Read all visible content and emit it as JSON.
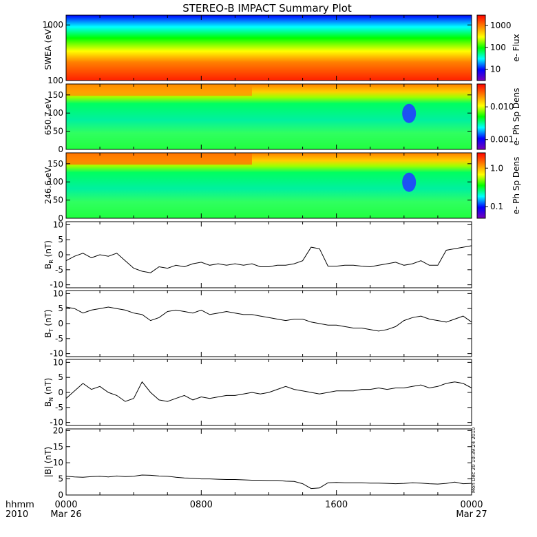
{
  "title": "STEREO-B IMPACT Summary Plot",
  "time_axis": {
    "corner_labels": [
      "hhmm",
      "2010"
    ],
    "ticks": [
      {
        "hhmm": "0000",
        "date": "Mar 26"
      },
      {
        "hhmm": "0800",
        "date": ""
      },
      {
        "hhmm": "1600",
        "date": ""
      },
      {
        "hhmm": "0000",
        "date": "Mar 27"
      }
    ]
  },
  "stamp": "Mon Dec 20 10:39:24 2010",
  "chart_data": [
    {
      "type": "heatmap",
      "ylabel": "SWEA (eV)",
      "yscale": "log",
      "yticks": [
        "1000",
        "100"
      ],
      "ylim": [
        100,
        1500
      ],
      "colorbar": {
        "label": "e- Flux",
        "scale": "log",
        "ticks": [
          "1000",
          "100",
          "10"
        ],
        "range": [
          3,
          3000
        ]
      },
      "colors": [
        "#7a00b8",
        "#0000ff",
        "#00ffff",
        "#00ff00",
        "#ffff00",
        "#ff8000",
        "#ff0000"
      ]
    },
    {
      "type": "heatmap",
      "ylabel": "650.7 eV",
      "yticks": [
        "150",
        "100",
        "50",
        "0"
      ],
      "ylim": [
        0,
        180
      ],
      "colorbar": {
        "label": "e- Ph Sp Dens",
        "scale": "log",
        "ticks": [
          "0.010",
          "0.001"
        ],
        "range": [
          0.0005,
          0.05
        ]
      },
      "colors": [
        "#7a00b8",
        "#0000ff",
        "#00ffff",
        "#00ff00",
        "#ffff00",
        "#ff8000",
        "#ff0000"
      ]
    },
    {
      "type": "heatmap",
      "ylabel": "246.6 eV",
      "yticks": [
        "150",
        "100",
        "50",
        "0"
      ],
      "ylim": [
        0,
        180
      ],
      "colorbar": {
        "label": "e- Ph Sp Dens",
        "scale": "log",
        "ticks": [
          "1.0",
          "0.1"
        ],
        "range": [
          0.05,
          2.5
        ]
      },
      "colors": [
        "#7a00b8",
        "#0000ff",
        "#00ffff",
        "#00ff00",
        "#ffff00",
        "#ff8000",
        "#ff0000"
      ]
    },
    {
      "type": "line",
      "ylabel": "B",
      "ylabel_sub": "R",
      "ylabel_unit": " (nT)",
      "yticks": [
        10,
        5,
        0,
        -5,
        -10
      ],
      "ylim": [
        -11,
        11
      ],
      "x": [
        0,
        0.5,
        1,
        1.5,
        2,
        2.5,
        3,
        3.5,
        4,
        4.5,
        5,
        5.5,
        6,
        6.5,
        7,
        7.5,
        8,
        8.5,
        9,
        9.5,
        10,
        10.5,
        11,
        11.5,
        12,
        12.5,
        13,
        13.5,
        14,
        14.5,
        15,
        15.5,
        16,
        16.5,
        17,
        17.5,
        18,
        18.5,
        19,
        19.5,
        20,
        20.5,
        21,
        21.5,
        22,
        22.5,
        23,
        23.5,
        24
      ],
      "y": [
        -2,
        -0.5,
        0.5,
        -1,
        0,
        -0.5,
        0.5,
        -2,
        -4.5,
        -5.5,
        -6,
        -4,
        -4.5,
        -3.5,
        -4,
        -3,
        -2.5,
        -3.5,
        -3,
        -3.5,
        -3,
        -3.5,
        -3,
        -4,
        -4,
        -3.5,
        -3.5,
        -3,
        -2,
        2.5,
        2,
        -3.8,
        -3.8,
        -3.5,
        -3.5,
        -3.8,
        -4,
        -3.5,
        -3,
        -2.5,
        -3.5,
        -3,
        -2,
        -3.5,
        -3.5,
        1.5,
        2,
        2.5,
        3
      ]
    },
    {
      "type": "line",
      "ylabel": "B",
      "ylabel_sub": "T",
      "ylabel_unit": " (nT)",
      "yticks": [
        10,
        5,
        0,
        -5,
        -10
      ],
      "ylim": [
        -11,
        11
      ],
      "x": [
        0,
        0.5,
        1,
        1.5,
        2,
        2.5,
        3,
        3.5,
        4,
        4.5,
        5,
        5.5,
        6,
        6.5,
        7,
        7.5,
        8,
        8.5,
        9,
        9.5,
        10,
        10.5,
        11,
        11.5,
        12,
        12.5,
        13,
        13.5,
        14,
        14.5,
        15,
        15.5,
        16,
        16.5,
        17,
        17.5,
        18,
        18.5,
        19,
        19.5,
        20,
        20.5,
        21,
        21.5,
        22,
        22.5,
        23,
        23.5,
        24
      ],
      "y": [
        5.5,
        5,
        3.5,
        4.5,
        5,
        5.5,
        5,
        4.5,
        3.5,
        3,
        1,
        2,
        4,
        4.5,
        4,
        3.5,
        4.5,
        3,
        3.5,
        4,
        3.5,
        3,
        3,
        2.5,
        2,
        1.5,
        1,
        1.5,
        1.5,
        0.5,
        0,
        -0.5,
        -0.5,
        -1,
        -1.5,
        -1.5,
        -2,
        -2.5,
        -2,
        -1,
        1,
        2,
        2.5,
        1.5,
        1,
        0.5,
        1.5,
        2.5,
        0.5
      ]
    },
    {
      "type": "line",
      "ylabel": "B",
      "ylabel_sub": "N",
      "ylabel_unit": " (nT)",
      "yticks": [
        10,
        5,
        0,
        -5,
        -10
      ],
      "ylim": [
        -11,
        11
      ],
      "x": [
        0,
        0.5,
        1,
        1.5,
        2,
        2.5,
        3,
        3.5,
        4,
        4.5,
        5,
        5.5,
        6,
        6.5,
        7,
        7.5,
        8,
        8.5,
        9,
        9.5,
        10,
        10.5,
        11,
        11.5,
        12,
        12.5,
        13,
        13.5,
        14,
        14.5,
        15,
        15.5,
        16,
        16.5,
        17,
        17.5,
        18,
        18.5,
        19,
        19.5,
        20,
        20.5,
        21,
        21.5,
        22,
        22.5,
        23,
        23.5,
        24
      ],
      "y": [
        -2,
        0.5,
        3,
        1,
        2,
        0,
        -1,
        -3,
        -2,
        3.5,
        0,
        -2.5,
        -3,
        -2,
        -1,
        -2.5,
        -1.5,
        -2,
        -1.5,
        -1,
        -1,
        -0.5,
        0,
        -0.5,
        0,
        1,
        2,
        1,
        0.5,
        0,
        -0.5,
        0,
        0.5,
        0.5,
        0.5,
        1,
        1,
        1.5,
        1,
        1.5,
        1.5,
        2,
        2.5,
        1.5,
        2,
        3,
        3.5,
        3,
        1.5
      ]
    },
    {
      "type": "line",
      "ylabel": "|B| (nT)",
      "yticks": [
        20,
        15,
        10,
        5,
        0
      ],
      "ylim": [
        0,
        20.5
      ],
      "x": [
        0,
        0.5,
        1,
        1.5,
        2,
        2.5,
        3,
        3.5,
        4,
        4.5,
        5,
        5.5,
        6,
        6.5,
        7,
        7.5,
        8,
        8.5,
        9,
        9.5,
        10,
        10.5,
        11,
        11.5,
        12,
        12.5,
        13,
        13.5,
        14,
        14.5,
        15,
        15.5,
        16,
        16.5,
        17,
        17.5,
        18,
        18.5,
        19,
        19.5,
        20,
        20.5,
        21,
        21.5,
        22,
        22.5,
        23,
        23.5,
        24
      ],
      "y": [
        5.8,
        5.6,
        5.5,
        5.7,
        5.8,
        5.6,
        5.9,
        5.7,
        5.8,
        6.2,
        6.1,
        5.9,
        5.8,
        5.5,
        5.3,
        5.2,
        5,
        5,
        4.9,
        4.8,
        4.8,
        4.7,
        4.6,
        4.6,
        4.5,
        4.5,
        4.3,
        4.2,
        3.5,
        2,
        2.2,
        3.8,
        3.9,
        3.8,
        3.8,
        3.8,
        3.7,
        3.7,
        3.6,
        3.5,
        3.6,
        3.8,
        3.7,
        3.5,
        3.4,
        3.6,
        4,
        3.5,
        3.6
      ]
    }
  ]
}
